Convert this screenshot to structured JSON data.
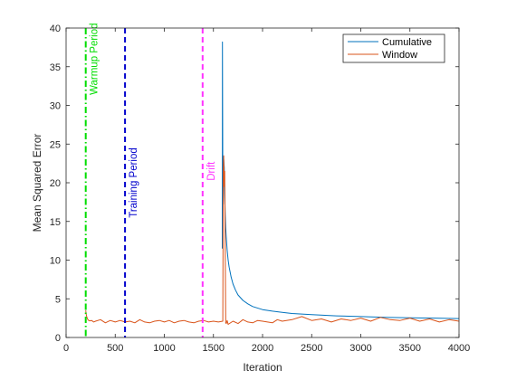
{
  "chart_data": {
    "type": "line",
    "title": "",
    "xlabel": "Iteration",
    "ylabel": "Mean Squared Error",
    "xlim": [
      0,
      4000
    ],
    "ylim": [
      0,
      40
    ],
    "xticks": [
      0,
      500,
      1000,
      1500,
      2000,
      2500,
      3000,
      3500,
      4000
    ],
    "yticks": [
      0,
      5,
      10,
      15,
      20,
      25,
      30,
      35,
      40
    ],
    "grid": false,
    "legend": {
      "placement": "top-right"
    },
    "series": [
      {
        "name": "Cumulative",
        "color": "#0072BD",
        "x": [
          1590,
          1592,
          1595,
          1600,
          1605,
          1610,
          1615,
          1620,
          1625,
          1630,
          1640,
          1650,
          1660,
          1680,
          1700,
          1725,
          1750,
          1800,
          1850,
          1900,
          2000,
          2100,
          2200,
          2300,
          2500,
          2750,
          3000,
          3250,
          3500,
          3750,
          4000
        ],
        "y": [
          11.5,
          38.2,
          20.5,
          17.2,
          23.0,
          22.0,
          18.5,
          15.8,
          14.2,
          13.0,
          11.3,
          10.0,
          9.1,
          7.8,
          6.9,
          6.1,
          5.5,
          4.8,
          4.35,
          4.0,
          3.6,
          3.4,
          3.25,
          3.1,
          2.95,
          2.8,
          2.7,
          2.6,
          2.55,
          2.5,
          2.45
        ]
      },
      {
        "name": "Window",
        "color": "#D95319",
        "x": [
          200,
          205,
          210,
          215,
          220,
          230,
          240,
          260,
          280,
          300,
          350,
          400,
          450,
          500,
          550,
          600,
          650,
          700,
          750,
          800,
          850,
          900,
          950,
          1000,
          1050,
          1100,
          1150,
          1200,
          1250,
          1300,
          1350,
          1400,
          1450,
          1500,
          1550,
          1595,
          1600,
          1605,
          1610,
          1615,
          1620,
          1625,
          1630,
          1640,
          1650,
          1700,
          1750,
          1800,
          1850,
          1900,
          1950,
          2000,
          2050,
          2100,
          2150,
          2200,
          2300,
          2400,
          2500,
          2600,
          2700,
          2800,
          2900,
          3000,
          3100,
          3200,
          3300,
          3400,
          3500,
          3600,
          3700,
          3800,
          3900,
          4000
        ],
        "y": [
          3.5,
          3.0,
          2.7,
          2.5,
          2.35,
          2.2,
          2.15,
          2.2,
          2.0,
          2.1,
          2.3,
          1.9,
          2.2,
          2.0,
          2.2,
          2.0,
          2.1,
          1.9,
          2.3,
          2.0,
          1.9,
          2.1,
          2.2,
          2.0,
          2.2,
          1.9,
          2.1,
          2.2,
          2.0,
          1.9,
          2.1,
          2.2,
          2.0,
          2.1,
          2.0,
          2.1,
          22.0,
          23.5,
          19.5,
          21.5,
          11.0,
          1.9,
          1.8,
          2.2,
          1.7,
          2.1,
          1.8,
          2.3,
          2.0,
          1.9,
          2.2,
          2.1,
          2.0,
          1.9,
          2.3,
          2.1,
          2.3,
          2.7,
          2.2,
          2.4,
          2.0,
          2.4,
          2.2,
          2.5,
          2.1,
          2.6,
          2.3,
          2.2,
          2.5,
          2.1,
          2.4,
          2.0,
          2.3,
          2.1
        ]
      }
    ],
    "vlines": [
      {
        "name": "warmup-line",
        "x": 200,
        "color": "#00DD00",
        "style": "dashdot",
        "label": "Warmup Period",
        "label_y": 36
      },
      {
        "name": "training-line",
        "x": 600,
        "color": "#0000CC",
        "style": "dashed",
        "label": "Training Period",
        "label_y": 20
      },
      {
        "name": "drift-line",
        "x": 1390,
        "color": "#FF33FF",
        "style": "dashed",
        "label": "Drift",
        "label_y": 21.5
      }
    ]
  }
}
